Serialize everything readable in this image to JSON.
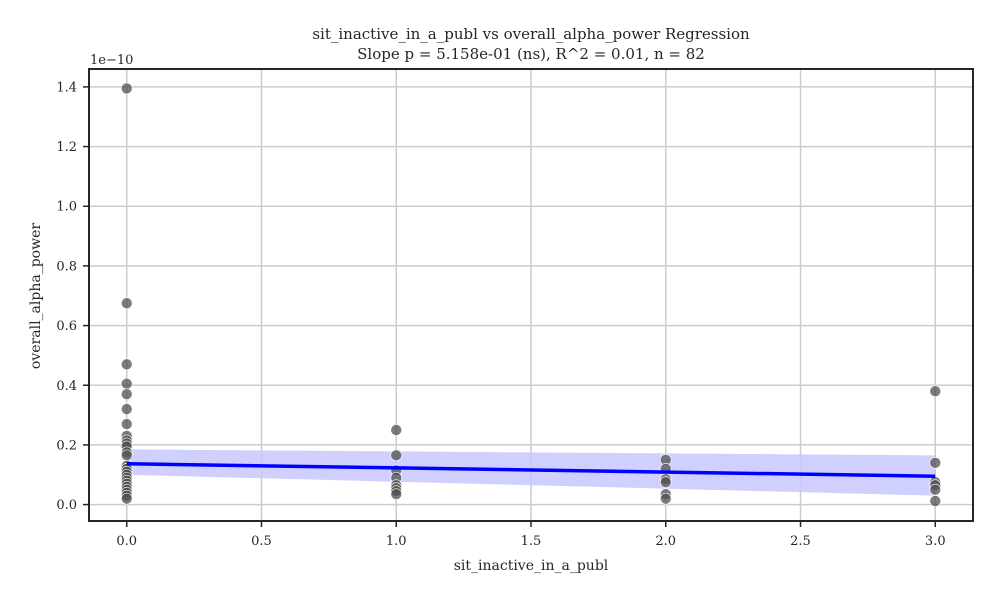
{
  "chart_data": {
    "type": "scatter",
    "title": "sit_inactive_in_a_publ vs overall_alpha_power Regression",
    "subtitle": "Slope p = 5.158e-01 (ns), R^2 = 0.01, n = 82",
    "xlabel": "sit_inactive_in_a_publ",
    "ylabel": "overall_alpha_power",
    "y_offset_label": "1e−10",
    "xlim": [
      -0.14,
      3.14
    ],
    "ylim": [
      -0.055,
      1.46
    ],
    "x_ticks": [
      0.0,
      0.5,
      1.0,
      1.5,
      2.0,
      2.5,
      3.0
    ],
    "x_tick_labels": [
      "0.0",
      "0.5",
      "1.0",
      "1.5",
      "2.0",
      "2.5",
      "3.0"
    ],
    "y_ticks": [
      0.0,
      0.2,
      0.4,
      0.6,
      0.8,
      1.0,
      1.2,
      1.4
    ],
    "y_tick_labels": [
      "0.0",
      "0.2",
      "0.4",
      "0.6",
      "0.8",
      "1.0",
      "1.2",
      "1.4"
    ],
    "grid": true,
    "points": [
      [
        0,
        1.395
      ],
      [
        0,
        0.675
      ],
      [
        0,
        0.47
      ],
      [
        0,
        0.405
      ],
      [
        0,
        0.37
      ],
      [
        0,
        0.32
      ],
      [
        0,
        0.27
      ],
      [
        0,
        0.23
      ],
      [
        0,
        0.215
      ],
      [
        0,
        0.205
      ],
      [
        0,
        0.195
      ],
      [
        0,
        0.175
      ],
      [
        0,
        0.165
      ],
      [
        0,
        0.13
      ],
      [
        0,
        0.12
      ],
      [
        0,
        0.11
      ],
      [
        0,
        0.1
      ],
      [
        0,
        0.09
      ],
      [
        0,
        0.08
      ],
      [
        0,
        0.07
      ],
      [
        0,
        0.06
      ],
      [
        0,
        0.05
      ],
      [
        0,
        0.04
      ],
      [
        0,
        0.03
      ],
      [
        0,
        0.02
      ],
      [
        1,
        0.25
      ],
      [
        1,
        0.165
      ],
      [
        1,
        0.115
      ],
      [
        1,
        0.09
      ],
      [
        1,
        0.065
      ],
      [
        1,
        0.055
      ],
      [
        1,
        0.045
      ],
      [
        1,
        0.035
      ],
      [
        2,
        0.15
      ],
      [
        2,
        0.12
      ],
      [
        2,
        0.085
      ],
      [
        2,
        0.075
      ],
      [
        2,
        0.035
      ],
      [
        2,
        0.02
      ],
      [
        3,
        0.38
      ],
      [
        3,
        0.14
      ],
      [
        3,
        0.075
      ],
      [
        3,
        0.065
      ],
      [
        3,
        0.05
      ],
      [
        3,
        0.012
      ]
    ],
    "regression": {
      "x": [
        0,
        3
      ],
      "y": [
        0.137,
        0.095
      ],
      "ci_lower": [
        0.1,
        0.03
      ],
      "ci_upper": [
        0.185,
        0.165
      ]
    },
    "colors": {
      "points": "#505050",
      "line": "#0000ff",
      "ci_band": "#c8c8ff",
      "grid": "#cccccc",
      "axes": "#262626"
    }
  }
}
